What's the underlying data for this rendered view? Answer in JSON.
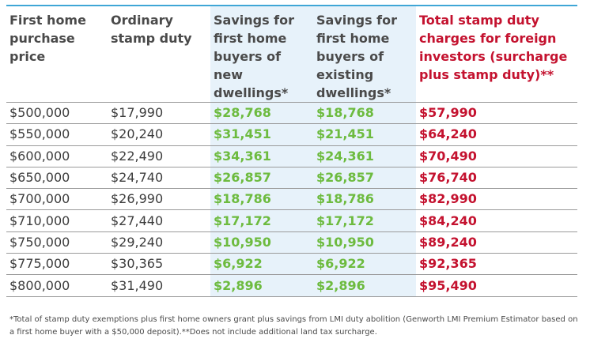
{
  "headers": [
    "First home purchase price",
    "Ordinary stamp duty",
    "Savings for first home buyers of new dwellings*",
    "Savings for first home buyers of existing dwellings*",
    "Total stamp duty charges for foreign investors (surcharge plus stamp duty)**"
  ],
  "rows": [
    [
      "$500,000",
      "$17,990",
      "$28,768",
      "$18,768",
      "$57,990"
    ],
    [
      "$550,000",
      "$20,240",
      "$31,451",
      "$21,451",
      "$64,240"
    ],
    [
      "$600,000",
      "$22,490",
      "$34,361",
      "$24,361",
      "$70,490"
    ],
    [
      "$650,000",
      "$24,740",
      "$26,857",
      "$26,857",
      "$76,740"
    ],
    [
      "$700,000",
      "$26,990",
      "$18,786",
      "$18,786",
      "$82,990"
    ],
    [
      "$710,000",
      "$27,440",
      "$17,172",
      "$17,172",
      "$84,240"
    ],
    [
      "$750,000",
      "$29,240",
      "$10,950",
      "$10,950",
      "$89,240"
    ],
    [
      "$775,000",
      "$30,365",
      "$6,922",
      "$6,922",
      "$92,365"
    ],
    [
      "$800,000",
      "$31,490",
      "$2,896",
      "$2,896",
      "$95,490"
    ]
  ],
  "footnote": "*Total of stamp duty exemptions plus first home owners grant plus savings from LMI duty abolition (Genworth LMI Premium Estimator based on a first home buyer with a $50,000 deposit).**Does not include additional land tax surcharge.",
  "colors": {
    "rule": "#3fa6d6",
    "shade": "#e7f2fa",
    "green": "#6dbb3f",
    "red": "#c4122f",
    "text": "#3c3c3c"
  }
}
